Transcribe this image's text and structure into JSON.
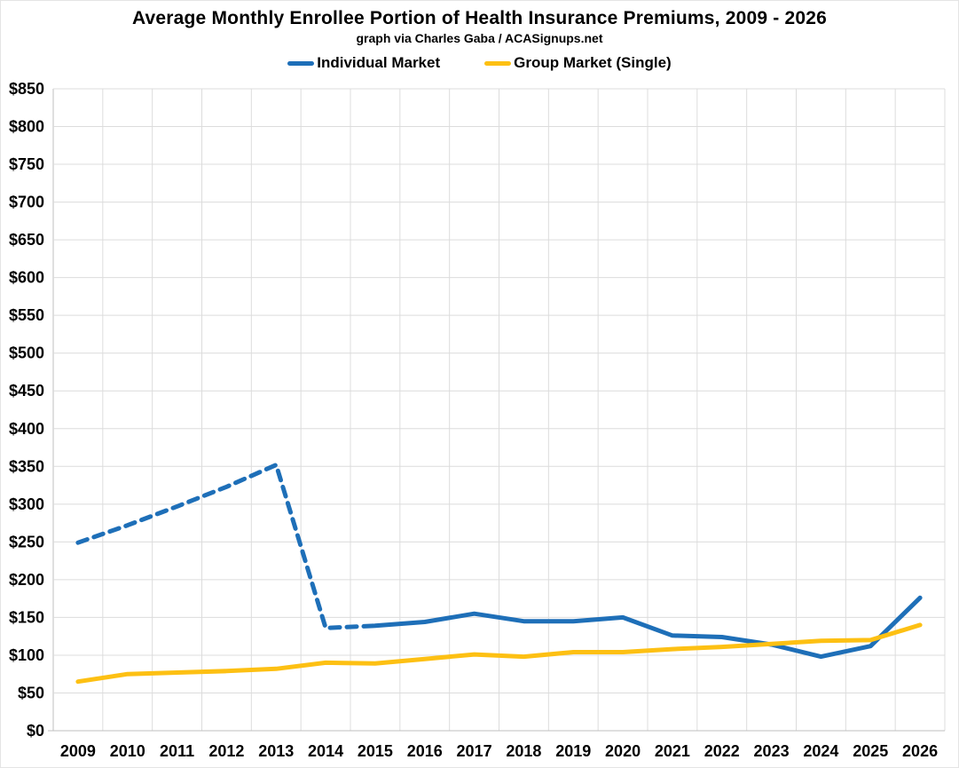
{
  "title": "Average Monthly Enrollee Portion of Health Insurance Premiums, 2009 - 2026",
  "subtitle": "graph via Charles Gaba / ACASignups.net",
  "legend": [
    {
      "label": "Individual Market",
      "color": "#1e6fb8"
    },
    {
      "label": "Group Market (Single)",
      "color": "#fdc013"
    }
  ],
  "chart_data": {
    "type": "line",
    "title": "Average Monthly Enrollee Portion of Health Insurance Premiums, 2009 - 2026",
    "subtitle": "graph via Charles Gaba / ACASignups.net",
    "x": [
      "2009",
      "2010",
      "2011",
      "2012",
      "2013",
      "2014",
      "2015",
      "2016",
      "2017",
      "2018",
      "2019",
      "2020",
      "2021",
      "2022",
      "2023",
      "2024",
      "2025",
      "2026"
    ],
    "series": [
      {
        "name": "Individual Market",
        "color": "#1e6fb8",
        "values": [
          249,
          272,
          297,
          323,
          352,
          136,
          139,
          144,
          155,
          145,
          145,
          150,
          126,
          124,
          114,
          98,
          112,
          176
        ],
        "dashed_through_index": 6,
        "line_style_note": "dashed from 2009 through 2015, solid 2015-2026"
      },
      {
        "name": "Group Market (Single)",
        "color": "#fdc013",
        "values": [
          65,
          75,
          77,
          79,
          82,
          90,
          89,
          95,
          101,
          98,
          104,
          104,
          108,
          111,
          115,
          119,
          120,
          140
        ],
        "line_style_note": "solid"
      }
    ],
    "ylabel": "",
    "xlabel": "",
    "ylim": [
      0,
      850
    ],
    "ytick_step": 50,
    "ytick_prefix": "$",
    "grid": true,
    "legend_position": "top",
    "colors": {
      "gridline": "#dcdcdc",
      "axis": "#bfbfbf",
      "text": "#000000"
    }
  }
}
